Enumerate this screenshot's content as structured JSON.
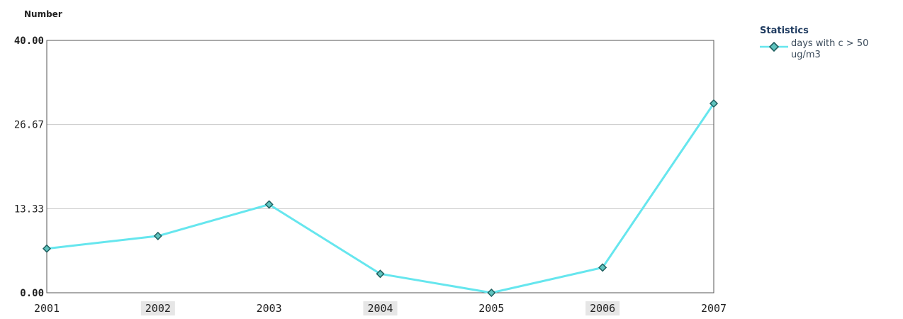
{
  "chart_data": {
    "type": "line",
    "ylabel": "Number",
    "xlabel": "",
    "categories": [
      "2001",
      "2002",
      "2003",
      "2004",
      "2005",
      "2006",
      "2007"
    ],
    "ylim": [
      0,
      40
    ],
    "yticks": [
      "0.00",
      "13.33",
      "26.67",
      "40.00"
    ],
    "grid": true,
    "legend_placement": "top-right",
    "legend_title": "Statistics",
    "series": [
      {
        "name": "days with c > 50 ug/m3",
        "values": [
          7,
          9,
          14,
          3,
          0,
          4,
          30
        ]
      }
    ],
    "colors": {
      "line": "#66e6ee",
      "marker_fill": "#5fc3be",
      "marker_stroke": "#1f5f5f",
      "grid": "#c8c8c8",
      "axis": "#555555",
      "tick_label_bg": "#e6e6e6"
    }
  }
}
